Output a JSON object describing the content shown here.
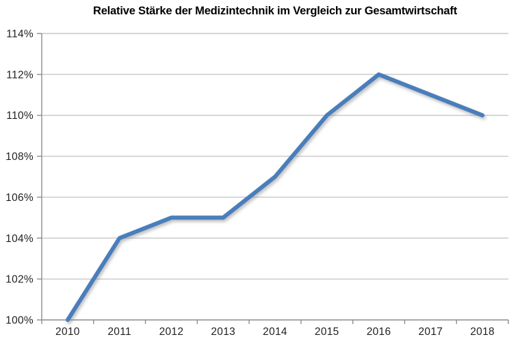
{
  "title": "Relative Stärke der Medizintechnik im Vergleich zur Gesamtwirtschaft",
  "chart_data": {
    "type": "line",
    "title": "Relative Stärke der Medizintechnik im Vergleich zur Gesamtwirtschaft",
    "categories": [
      "2010",
      "2011",
      "2012",
      "2013",
      "2014",
      "2015",
      "2016",
      "2017",
      "2018"
    ],
    "series": [
      {
        "name": "Relative Stärke der Medizintechnik",
        "values": [
          100,
          104,
          105,
          105,
          107,
          110,
          112,
          111,
          110
        ]
      }
    ],
    "xlabel": "",
    "ylabel": "",
    "ylim": [
      100,
      114
    ],
    "ytick_step": 2,
    "ytick_labels": [
      "100%",
      "102%",
      "104%",
      "106%",
      "108%",
      "110%",
      "112%",
      "114%"
    ],
    "grid": true,
    "legend": false,
    "colors": {
      "line": "#4a7ebb",
      "gridline": "#c7c7c7",
      "axis": "#8c8c8c",
      "tick_text": "#1f1f1f",
      "title_text": "#000000",
      "background": "#ffffff",
      "shadow": "#7a7a7a"
    }
  }
}
